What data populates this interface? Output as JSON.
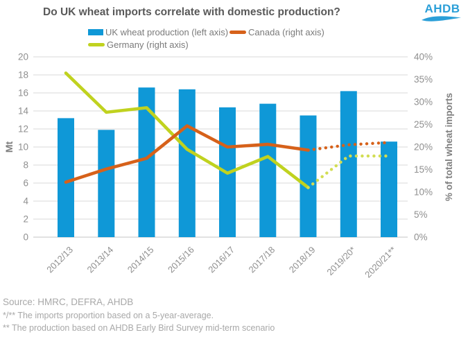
{
  "header": {
    "title": "Do UK wheat imports correlate with domestic production?",
    "logo_text": "AHDB"
  },
  "legend": [
    {
      "label": "UK wheat production (left axis)",
      "marker": "bar",
      "color": "#0f98d7"
    },
    {
      "label": "Canada (right axis)",
      "marker": "line",
      "color": "#d6611a"
    },
    {
      "label": "Germany (right axis)",
      "marker": "line",
      "color": "#c0d21f"
    }
  ],
  "chart_data": {
    "type": "bar",
    "subtype": "combo-bar-line",
    "title": "Do UK wheat imports correlate with domestic production?",
    "categories": [
      "2012/13",
      "2013/14",
      "2014/15",
      "2015/16",
      "2016/17",
      "2017/18",
      "2018/19",
      "2019/20*",
      "2020/21**"
    ],
    "series": [
      {
        "name": "UK wheat production (left axis)",
        "type": "bar",
        "axis": "left",
        "color": "#0f98d7",
        "values": [
          13.2,
          11.9,
          16.6,
          16.4,
          14.4,
          14.8,
          13.5,
          16.2,
          10.6
        ]
      },
      {
        "name": "Canada (right axis)",
        "type": "line",
        "axis": "right",
        "color": "#d6611a",
        "dotted_color": "#d6611a",
        "forecast_from_index": 6,
        "values": [
          12.2,
          15.1,
          17.5,
          24.7,
          20.0,
          20.6,
          19.3,
          20.5,
          21.0
        ]
      },
      {
        "name": "Germany (right axis)",
        "type": "line",
        "axis": "right",
        "color": "#c0d21f",
        "dotted_color": "#d2dd52",
        "forecast_from_index": 6,
        "values": [
          36.4,
          27.7,
          28.7,
          19.5,
          14.2,
          17.9,
          11.0,
          18.0,
          18.0
        ]
      }
    ],
    "left_axis": {
      "label": "Mt",
      "min": 0,
      "max": 20,
      "step": 2,
      "ticks": [
        "0",
        "2",
        "4",
        "6",
        "8",
        "10",
        "12",
        "14",
        "16",
        "18",
        "20"
      ]
    },
    "right_axis": {
      "label": "% of total wheat imports",
      "min": 0,
      "max": 40,
      "step": 5,
      "ticks": [
        "0%",
        "5%",
        "10%",
        "15%",
        "20%",
        "25%",
        "30%",
        "35%",
        "40%"
      ]
    },
    "grid": true,
    "legend_position": "top",
    "colors": {
      "gridline": "#d9d9d9",
      "baseline": "#c6c6c6",
      "tick_text": "#8f8f8f",
      "axis_title": "#7f7f7f"
    }
  },
  "footer": {
    "source": "Source: HMRC, DEFRA, AHDB",
    "note1": "*/** The imports proportion based on a 5-year-average.",
    "note2": "** The production based on AHDB Early Bird Survey mid-term scenario"
  }
}
